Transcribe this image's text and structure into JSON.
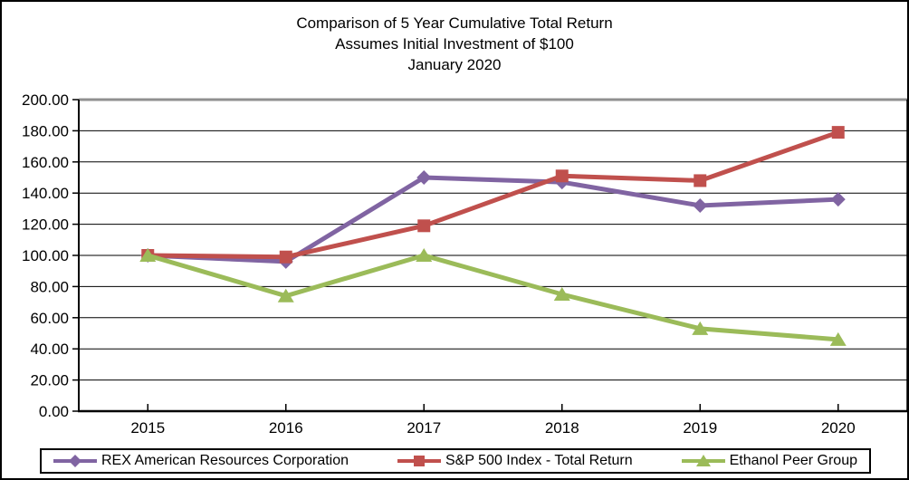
{
  "chart_data": {
    "type": "line",
    "title": "Comparison of 5 Year Cumulative Total Return",
    "subtitle1": "Assumes Initial Investment of $100",
    "subtitle2": "January 2020",
    "categories": [
      "2015",
      "2016",
      "2017",
      "2018",
      "2019",
      "2020"
    ],
    "series": [
      {
        "name": "REX American Resources Corporation",
        "marker": "diamond",
        "color": "#8064A2",
        "values": [
          100,
          96,
          150,
          147,
          132,
          136
        ]
      },
      {
        "name": "S&P 500 Index - Total Return",
        "marker": "square",
        "color": "#C0504D",
        "values": [
          100,
          99,
          119,
          151,
          148,
          179
        ]
      },
      {
        "name": "Ethanol Peer Group",
        "marker": "triangle",
        "color": "#9BBB59",
        "values": [
          100,
          74,
          100,
          75,
          53,
          46
        ]
      }
    ],
    "y_axis": {
      "min": 0,
      "max": 200,
      "step": 20,
      "tick_labels": [
        "0.00",
        "20.00",
        "40.00",
        "60.00",
        "80.00",
        "100.00",
        "120.00",
        "140.00",
        "160.00",
        "180.00",
        "200.00"
      ]
    },
    "x_axis": {
      "tick_labels": [
        "2015",
        "2016",
        "2017",
        "2018",
        "2019",
        "2020"
      ]
    },
    "grid": true,
    "legend_position": "bottom",
    "colors": {
      "background": "#FFFFFF",
      "frame_border": "#000000",
      "gridline": "#000000",
      "axis": "#000000",
      "plot_top_border": "#909090",
      "text": "#000000"
    }
  }
}
